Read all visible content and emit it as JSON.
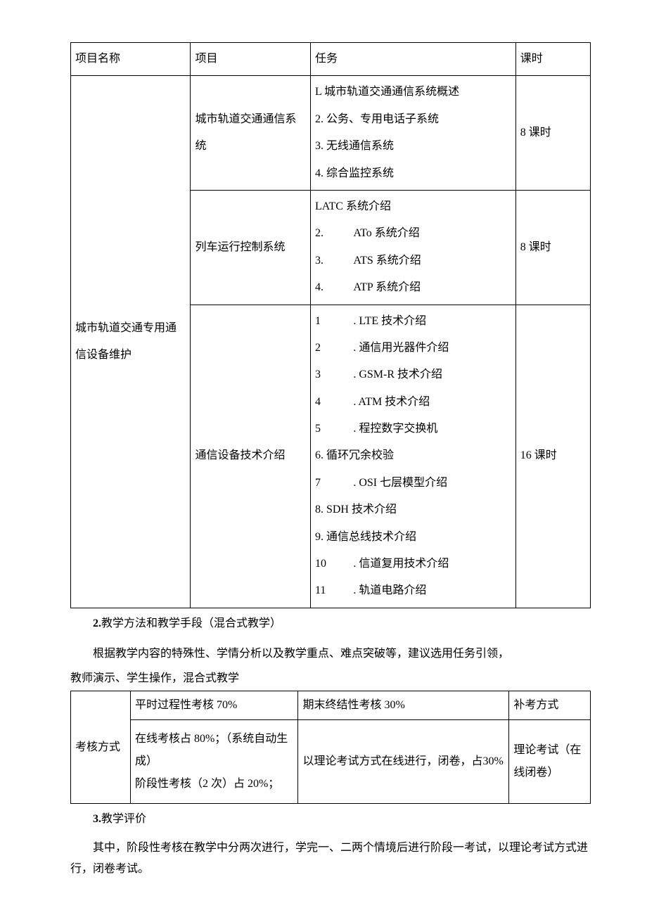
{
  "table1": {
    "headers": [
      "项目名称",
      "项目",
      "任务",
      "课时"
    ],
    "col_widths": [
      "170px",
      "170px",
      "300px",
      "100px"
    ],
    "project_name": "城市轨道交通专用通信设备维护",
    "rows": [
      {
        "project": "城市轨道交通通信系统",
        "tasks": [
          "L 城市轨道交通通信系统概述",
          "2. 公务、专用电话子系统",
          "3. 无线通信系统",
          "4. 综合监控系统"
        ],
        "hours": "8 课时"
      },
      {
        "project": "列车运行控制系统",
        "tasks_layout": "num_gap",
        "tasks": [
          {
            "raw": "LATC 系统介绍"
          },
          {
            "n": "2.",
            "t": "ATo 系统介绍"
          },
          {
            "n": "3.",
            "t": "ATS 系统介绍"
          },
          {
            "n": "4.",
            "t": "ATP 系统介绍"
          }
        ],
        "hours": "8 课时"
      },
      {
        "project": "通信设备技术介绍",
        "tasks_layout": "num_gap_dot",
        "tasks": [
          {
            "n": "1",
            "t": ". LTE 技术介绍"
          },
          {
            "n": "2",
            "t": ". 通信用光器件介绍"
          },
          {
            "n": "3",
            "t": ". GSM-R 技术介绍"
          },
          {
            "n": "4",
            "t": ". ATM 技术介绍"
          },
          {
            "n": "5",
            "t": ". 程控数字交换机"
          },
          {
            "raw": "6. 循环冗余校验"
          },
          {
            "n": "7",
            "t": ". OSI 七层模型介绍"
          },
          {
            "raw": "8. SDH 技术介绍"
          },
          {
            "raw": "9. 通信总线技术介绍"
          },
          {
            "n": "10",
            "t": ". 信道复用技术介绍"
          },
          {
            "n": "11",
            "t": ". 轨道电路介绍"
          }
        ],
        "hours": "16 课时"
      }
    ]
  },
  "section2": {
    "heading_prefix": "2.",
    "heading": "教学方法和教学手段（混合式教学）",
    "p1": "根据教学内容的特殊性、学情分析以及教学重点、难点突破等，建议选用任务引领，",
    "p2": "教师演示、学生操作，混合式教学"
  },
  "table2": {
    "row_label": "考核方式",
    "h1": "平时过程性考核 70%",
    "h2": "期末终结性考核 30%",
    "h3": "补考方式",
    "c1": "在线考核占 80%；（系统自动生成）\n阶段性考核（2 次）占 20%；",
    "c2": "以理论考试方式在线进行，闭卷，占30%",
    "c3": "理论考试（在线闭卷）",
    "col_widths": [
      "70px",
      "220px",
      "280px",
      "100px"
    ]
  },
  "section3": {
    "heading_prefix": "3.",
    "heading": "教学评价",
    "p1": "其中，阶段性考核在教学中分两次进行，学完一、二两个情境后进行阶段一考试，以理论考试方式进行，闭卷考试。"
  }
}
